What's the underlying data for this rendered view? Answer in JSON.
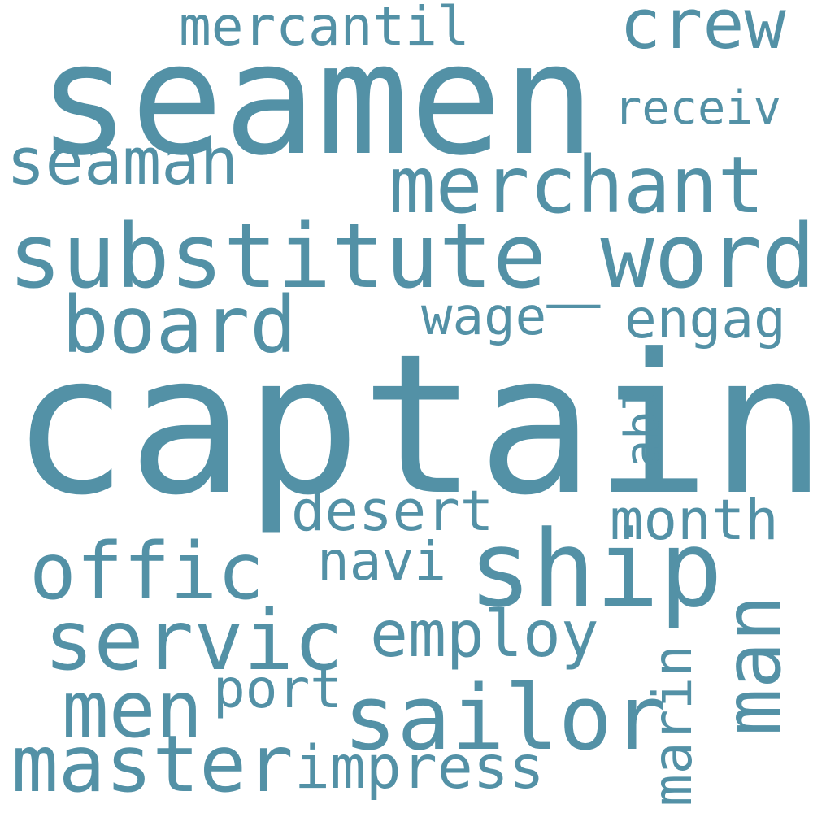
{
  "color": "#5391a6",
  "words": {
    "seamen": "seamen",
    "crew": "crew",
    "mercantil": "mercantil",
    "receiv": "receiv",
    "seaman": "seaman",
    "merchant": "merchant",
    "substitute_word": "substitute_word",
    "board": "board",
    "wage": "wage",
    "engag": "engag",
    "captain": "captain",
    "abl": "abl",
    "desert": "desert",
    "month": "month",
    "offic": "offic",
    "navi": "navi",
    "ship": "ship",
    "man": "man",
    "servic": "servic",
    "employ": "employ",
    "marin": "marin",
    "men": "men",
    "port": "port",
    "sailor": "sailor",
    "master": "master",
    "impress": "impress"
  }
}
